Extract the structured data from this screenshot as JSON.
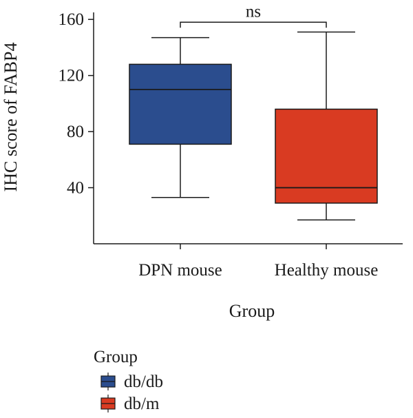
{
  "chart_data": {
    "type": "boxplot",
    "title": "",
    "xlabel": "Group",
    "ylabel": "IHC score of FABP4",
    "ylim": [
      0,
      165
    ],
    "yticks": [
      40,
      80,
      120,
      160
    ],
    "categories": [
      "DPN mouse",
      "Healthy mouse"
    ],
    "boxes": [
      {
        "category": "DPN mouse",
        "legend": "db/db",
        "color": "#2b4d8e",
        "min": 33,
        "q1": 71,
        "median": 110,
        "q3": 128,
        "max": 147
      },
      {
        "category": "Healthy mouse",
        "legend": "db/m",
        "color": "#d93b22",
        "min": 17,
        "q1": 29,
        "median": 40,
        "q3": 96,
        "max": 151
      }
    ],
    "annotations": [
      {
        "type": "significance",
        "between": [
          "DPN mouse",
          "Healthy mouse"
        ],
        "label": "ns",
        "y": 158
      }
    ],
    "legend": {
      "title": "Group",
      "entries": [
        {
          "label": "db/db",
          "color": "#2b4d8e"
        },
        {
          "label": "db/m",
          "color": "#d93b22"
        }
      ],
      "position": "bottom-left"
    },
    "grid": false
  }
}
